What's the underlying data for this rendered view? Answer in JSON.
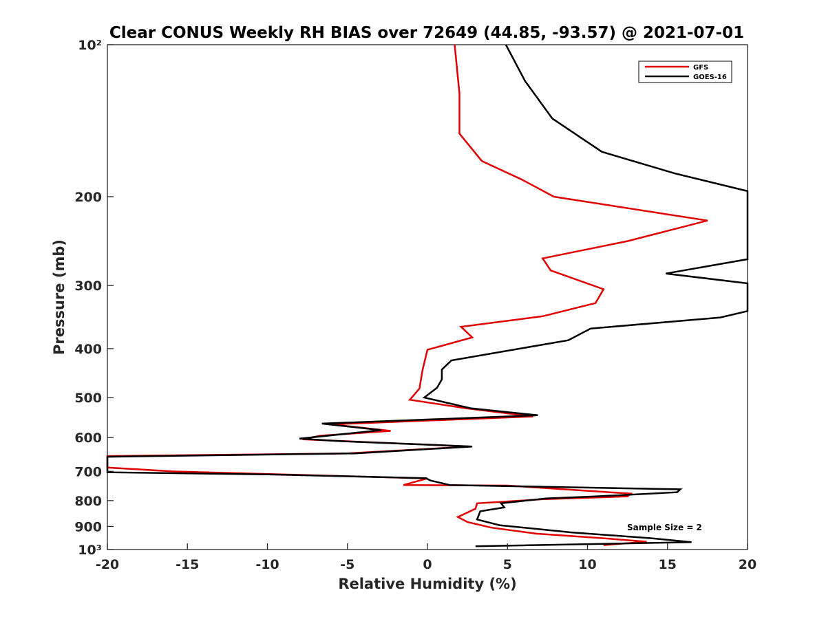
{
  "chart_data": {
    "type": "line",
    "title": "Clear CONUS Weekly RH BIAS over 72649 (44.85, -93.57) @ 2021-07-01",
    "xlabel": "Relative Humidity (%)",
    "ylabel": "Pressure (mb)",
    "xlim": [
      -20,
      20
    ],
    "ylim": [
      100,
      1000
    ],
    "y_scale": "log",
    "y_reversed": true,
    "x_ticks": [
      -20,
      -15,
      -10,
      -5,
      0,
      5,
      10,
      15,
      20
    ],
    "x_tick_labels": [
      "-20",
      "-15",
      "-10",
      "-5",
      "0",
      "5",
      "10",
      "15",
      "20"
    ],
    "y_ticks": [
      100,
      200,
      300,
      400,
      500,
      600,
      700,
      800,
      900,
      1000
    ],
    "y_tick_labels": [
      "10²",
      "200",
      "300",
      "400",
      "500",
      "600",
      "700",
      "800",
      "900",
      "10³"
    ],
    "grid": false,
    "legend": "top-right",
    "annotation": "Sample Size = 2",
    "series": [
      {
        "name": "GFS",
        "color": "#e00000",
        "points": [
          [
            1.7,
            100
          ],
          [
            2.0,
            125
          ],
          [
            2.0,
            150
          ],
          [
            3.4,
            170
          ],
          [
            5.9,
            185
          ],
          [
            7.9,
            200
          ],
          [
            17.5,
            223
          ],
          [
            12.5,
            245
          ],
          [
            7.2,
            265
          ],
          [
            7.7,
            280
          ],
          [
            11.0,
            305
          ],
          [
            10.5,
            325
          ],
          [
            7.2,
            345
          ],
          [
            2.1,
            362
          ],
          [
            2.8,
            380
          ],
          [
            0.0,
            402
          ],
          [
            -0.3,
            440
          ],
          [
            -0.5,
            480
          ],
          [
            -1.1,
            505
          ],
          [
            2.4,
            525
          ],
          [
            6.6,
            545
          ],
          [
            -6.0,
            565
          ],
          [
            -2.3,
            582
          ],
          [
            -6.7,
            595
          ],
          [
            -7.8,
            605
          ],
          [
            2.7,
            625
          ],
          [
            -5.0,
            645
          ],
          [
            -20.0,
            653
          ],
          [
            -20.0,
            688
          ],
          [
            -16.0,
            700
          ],
          [
            -4.0,
            717
          ],
          [
            0.0,
            723
          ],
          [
            -1.5,
            745
          ],
          [
            5.0,
            747
          ],
          [
            12.7,
            775
          ],
          [
            12.5,
            785
          ],
          [
            7.2,
            795
          ],
          [
            3.1,
            810
          ],
          [
            3.0,
            830
          ],
          [
            1.9,
            862
          ],
          [
            2.5,
            882
          ],
          [
            4.0,
            905
          ],
          [
            6.8,
            930
          ],
          [
            11.0,
            950
          ],
          [
            13.7,
            965
          ],
          [
            11.0,
            980
          ]
        ]
      },
      {
        "name": "GOES-16",
        "color": "#000000",
        "points": [
          [
            4.9,
            100
          ],
          [
            6.1,
            118
          ],
          [
            7.8,
            140
          ],
          [
            10.9,
            163
          ],
          [
            15.5,
            180
          ],
          [
            20.0,
            195
          ],
          [
            20.0,
            266
          ],
          [
            14.9,
            284
          ],
          [
            20.0,
            297
          ],
          [
            20.0,
            337
          ],
          [
            18.3,
            347
          ],
          [
            10.2,
            365
          ],
          [
            8.8,
            385
          ],
          [
            1.5,
            422
          ],
          [
            0.9,
            440
          ],
          [
            0.9,
            460
          ],
          [
            0.6,
            478
          ],
          [
            -0.2,
            500
          ],
          [
            2.7,
            525
          ],
          [
            6.9,
            542
          ],
          [
            -6.6,
            563
          ],
          [
            -2.9,
            580
          ],
          [
            -8.0,
            603
          ],
          [
            -5.5,
            610
          ],
          [
            2.8,
            625
          ],
          [
            -4.5,
            645
          ],
          [
            -20.0,
            655
          ],
          [
            -20.0,
            703
          ],
          [
            -10.0,
            710
          ],
          [
            -0.1,
            722
          ],
          [
            0.2,
            730
          ],
          [
            1.4,
            745
          ],
          [
            15.8,
            760
          ],
          [
            15.6,
            770
          ],
          [
            10.5,
            785
          ],
          [
            7.4,
            792
          ],
          [
            4.6,
            810
          ],
          [
            4.8,
            825
          ],
          [
            3.3,
            840
          ],
          [
            3.1,
            872
          ],
          [
            4.5,
            895
          ],
          [
            9.0,
            925
          ],
          [
            14.0,
            950
          ],
          [
            16.5,
            967
          ],
          [
            3.0,
            985
          ]
        ]
      }
    ]
  }
}
